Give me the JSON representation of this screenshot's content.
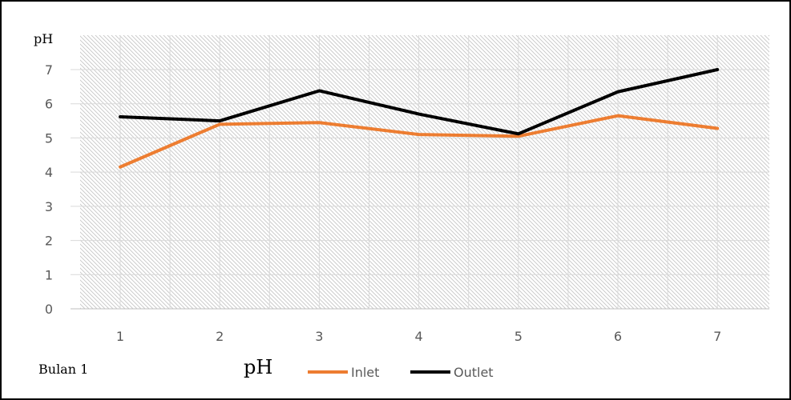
{
  "chart_data": {
    "type": "line",
    "categories": [
      "1",
      "2",
      "3",
      "4",
      "5",
      "6",
      "7"
    ],
    "series": [
      {
        "name": "Inlet",
        "values": [
          4.15,
          5.4,
          5.45,
          5.1,
          5.05,
          5.65,
          5.28
        ],
        "color": "#ed7d31"
      },
      {
        "name": "Outlet",
        "values": [
          5.62,
          5.5,
          6.38,
          5.7,
          5.12,
          6.35,
          7.0
        ],
        "color": "#000000"
      }
    ],
    "ylabel": "pH",
    "ylim": [
      0,
      7
    ],
    "yticks": [
      "0",
      "1",
      "2",
      "3",
      "4",
      "5",
      "6",
      "7"
    ],
    "grid": true,
    "plot_fill": "hatched",
    "legend_position": "bottom",
    "caption_left": "Bulan 1",
    "caption_mid": "pH"
  }
}
